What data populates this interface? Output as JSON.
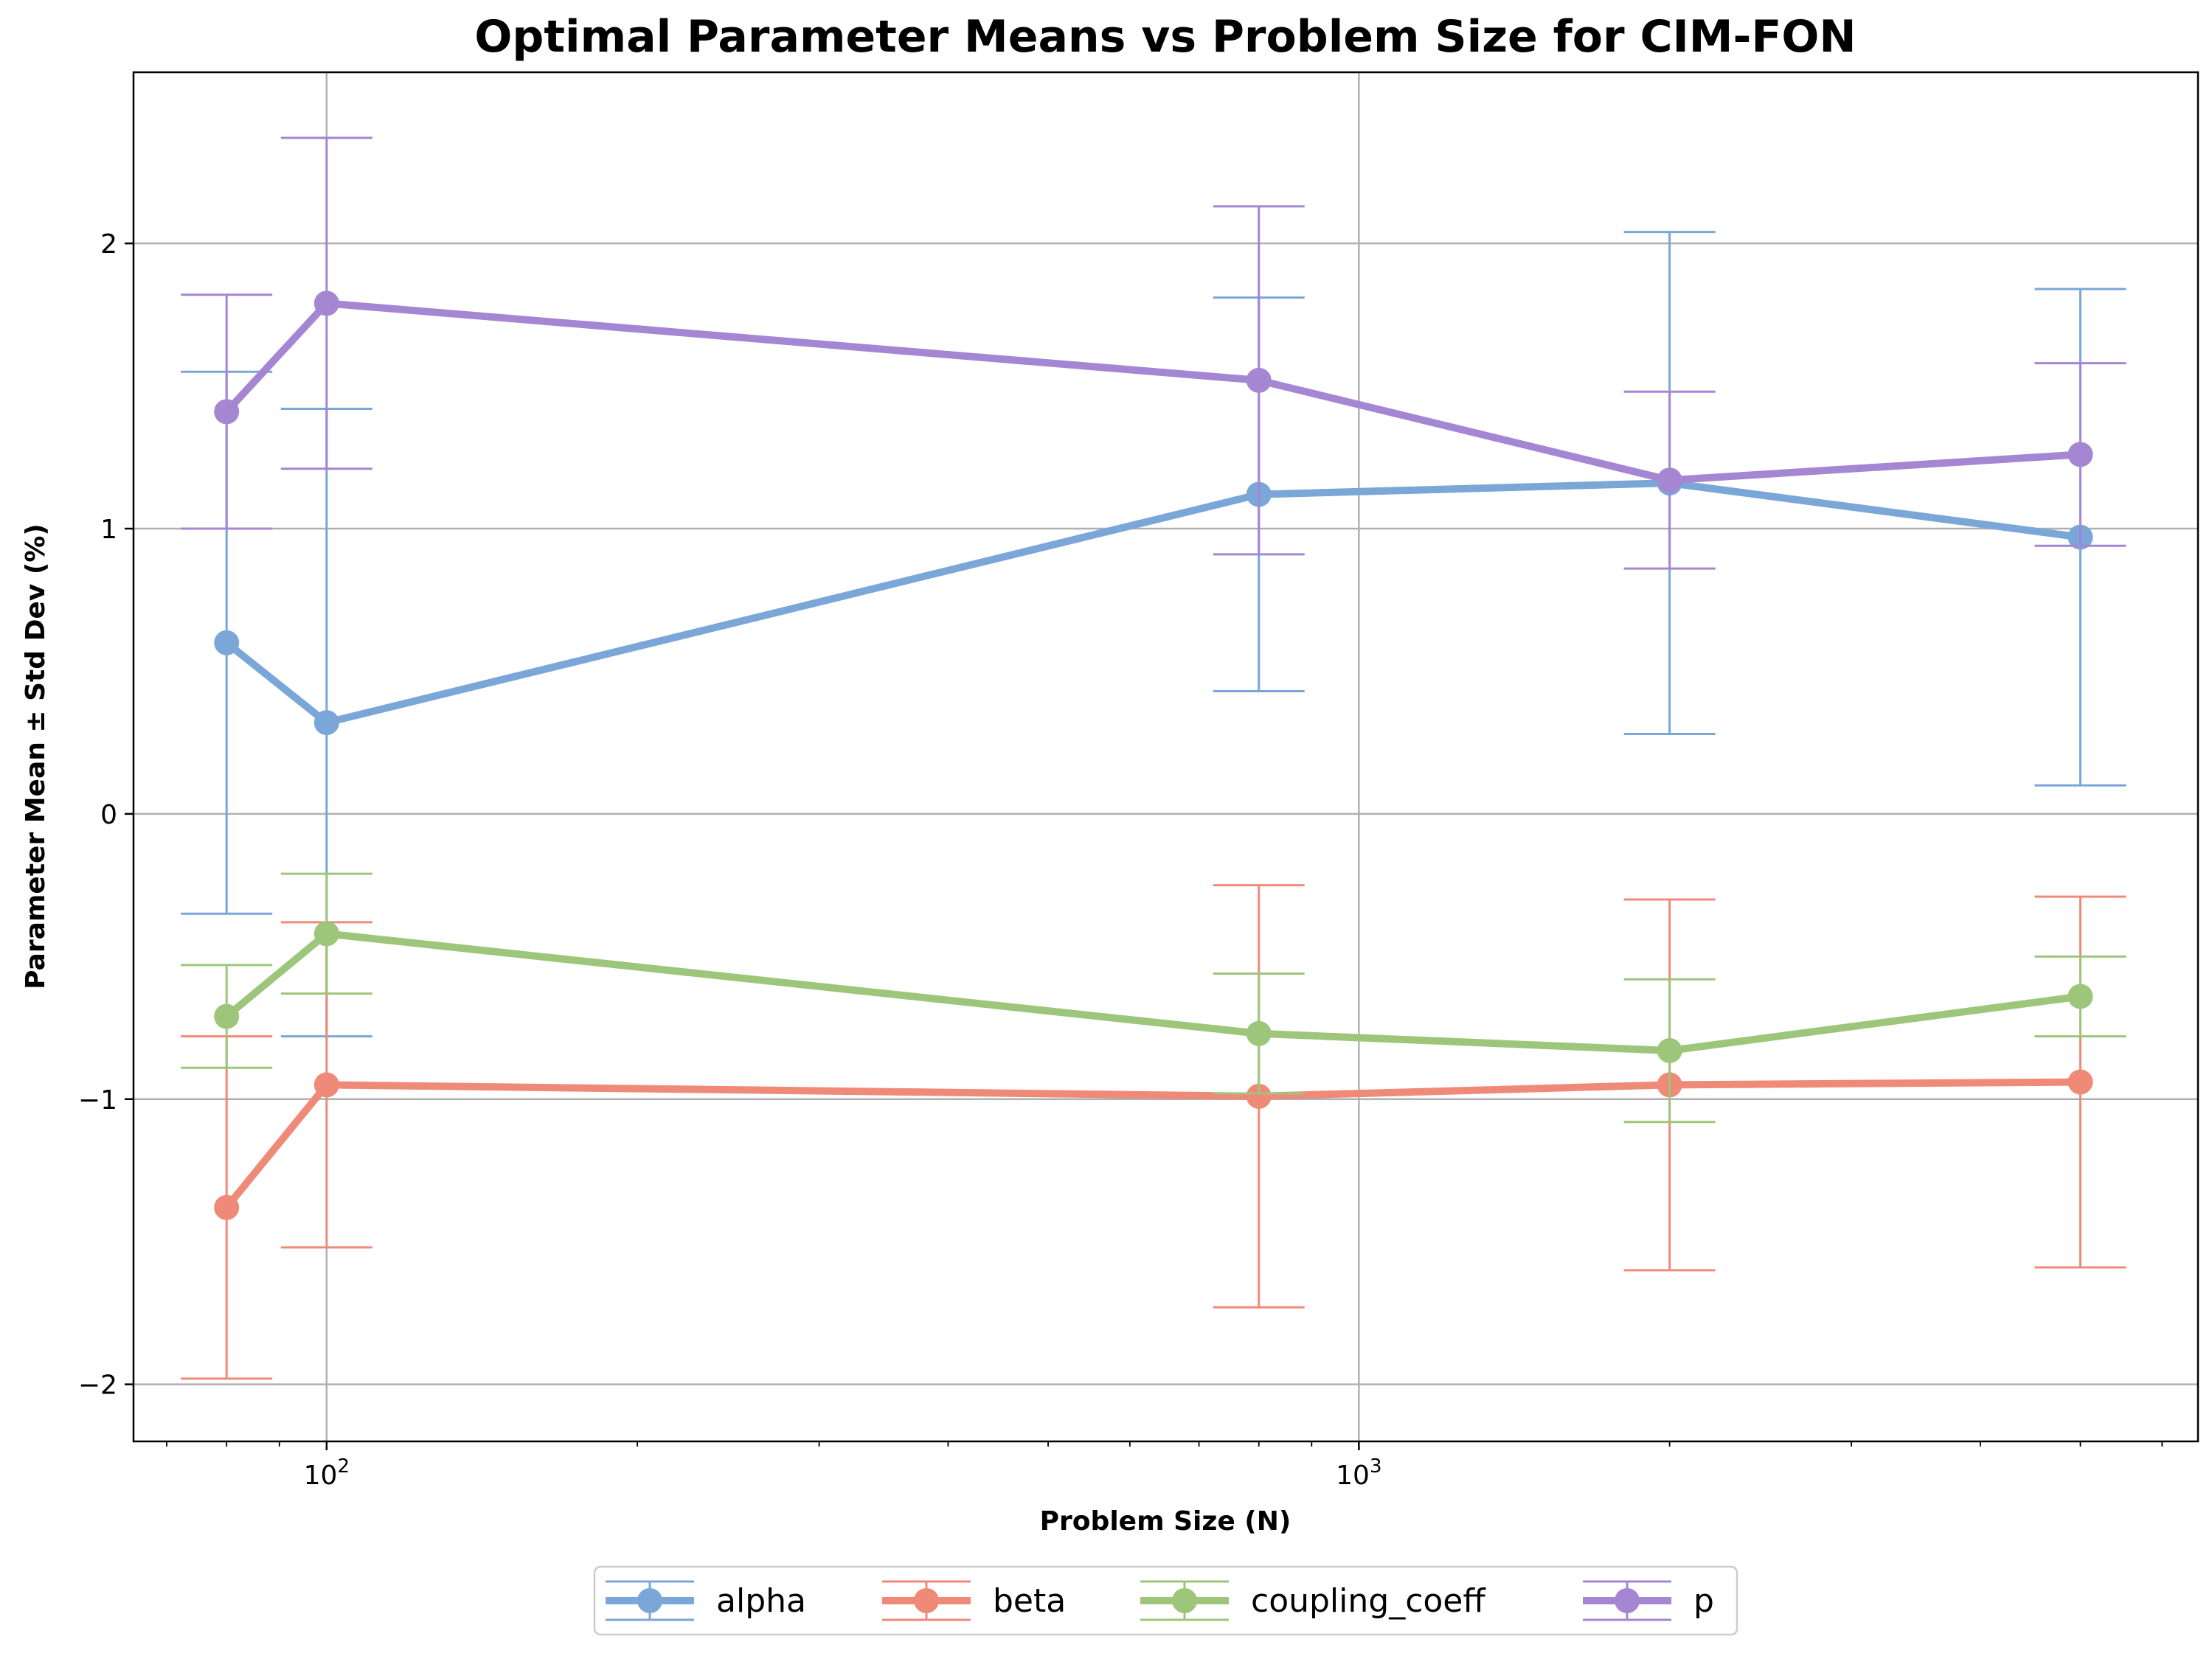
{
  "chart_data": {
    "type": "line",
    "title": "Optimal Parameter Means vs Problem Size for CIM-FON",
    "xlabel": "Problem Size (N)",
    "ylabel": "Parameter Mean ± Std Dev (%)",
    "xscale": "log",
    "xlim": [
      65,
      6500
    ],
    "ylim": [
      -2.2,
      2.6
    ],
    "x": [
      80,
      100,
      800,
      2000,
      5000
    ],
    "x_ticks": [
      {
        "value": 100,
        "base": "10",
        "exp": "2"
      },
      {
        "value": 1000,
        "base": "10",
        "exp": "3"
      }
    ],
    "y_ticks": [
      {
        "value": -2,
        "label": "−2"
      },
      {
        "value": -1,
        "label": "−1"
      },
      {
        "value": 0,
        "label": "0"
      },
      {
        "value": 1,
        "label": "1"
      },
      {
        "value": 2,
        "label": "2"
      }
    ],
    "grid": true,
    "legend_position": "bottom-center",
    "series": [
      {
        "name": "alpha",
        "color": "#7aa6d8",
        "values": [
          0.6,
          0.32,
          1.12,
          1.16,
          0.97
        ],
        "errors": [
          0.95,
          1.1,
          0.69,
          0.88,
          0.87
        ]
      },
      {
        "name": "beta",
        "color": "#ef8a78",
        "values": [
          -1.38,
          -0.95,
          -0.99,
          -0.95,
          -0.94
        ],
        "errors": [
          0.6,
          0.57,
          0.74,
          0.65,
          0.65
        ]
      },
      {
        "name": "coupling_coeff",
        "color": "#9dc67b",
        "values": [
          -0.71,
          -0.42,
          -0.77,
          -0.83,
          -0.64
        ],
        "errors": [
          0.18,
          0.21,
          0.21,
          0.25,
          0.14
        ]
      },
      {
        "name": "p",
        "color": "#a486d2",
        "values": [
          1.41,
          1.79,
          1.52,
          1.17,
          1.26
        ],
        "errors": [
          0.41,
          0.58,
          0.61,
          0.31,
          0.32
        ]
      }
    ]
  }
}
